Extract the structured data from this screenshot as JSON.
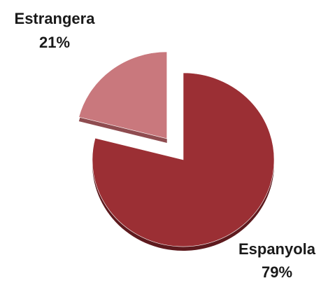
{
  "chart_data": {
    "type": "pie",
    "title": "",
    "categories": [
      "Espanyola",
      "Estrangera"
    ],
    "values": [
      79,
      21
    ],
    "labels": [
      "79%",
      "21%"
    ],
    "exploded": "Estrangera",
    "legend": "none",
    "colors": {
      "Espanyola": "#9b2f34",
      "Estrangera": "#c9787d"
    },
    "side_colors": {
      "Espanyola": "#5e1a1e",
      "Estrangera": "#8f4c50"
    }
  }
}
